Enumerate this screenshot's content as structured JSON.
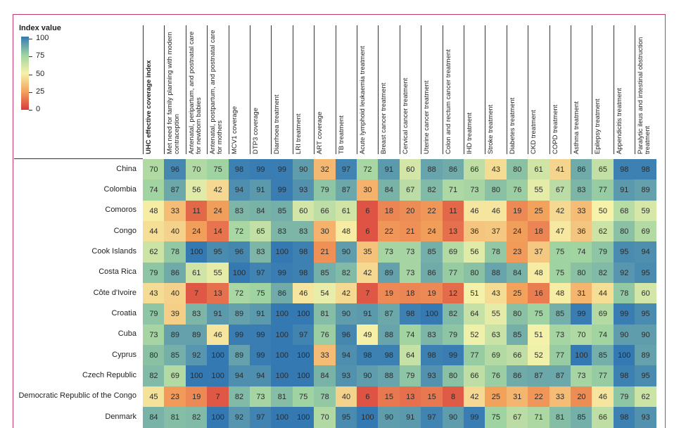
{
  "chart_data": {
    "type": "heatmap",
    "legend_title": "Index value",
    "zlim": [
      0,
      100
    ],
    "zticks": [
      0,
      25,
      50,
      75,
      100
    ],
    "colors": [
      "#d73a3c",
      "#f3a25c",
      "#f6f2aa",
      "#9fd3a2",
      "#3579b3"
    ],
    "categories": [
      "UHC effective coverage index",
      "Met need for family planning with modern contraception",
      "Antenatal, peripartum, and postnatal care for newborn babies",
      "Antenatal, postpartum, and postnatal care for mothers",
      "MCV1 coverage",
      "DTP3 coverage",
      "Diarrhoea treatment",
      "LRI treatment",
      "ART coverage",
      "TB treatment",
      "Acute lymphoid leukaemia treatment",
      "Breast cancer treatment",
      "Cervical cancer treatment",
      "Uterine cancer treatment",
      "Colon and rectum cancer treatment",
      "IHD treatment",
      "Stroke treatment",
      "Diabetes treatment",
      "CKD treatment",
      "COPD treatment",
      "Asthma treatment",
      "Epilepsy treatment",
      "Appendicitis treatment",
      "Paralytic ileus and intestinal obstruction treatment"
    ],
    "rows": [
      "China",
      "Colombia",
      "Comoros",
      "Congo",
      "Cook Islands",
      "Costa Rica",
      "Côte d'Ivoire",
      "Croatia",
      "Cuba",
      "Cyprus",
      "Czech Republic",
      "Democratic Republic of the Congo",
      "Denmark"
    ],
    "values": [
      [
        70,
        96,
        70,
        75,
        98,
        99,
        99,
        90,
        32,
        97,
        72,
        91,
        60,
        88,
        86,
        66,
        43,
        80,
        61,
        41,
        86,
        65,
        98,
        98
      ],
      [
        74,
        87,
        56,
        42,
        94,
        91,
        99,
        93,
        79,
        87,
        30,
        84,
        67,
        82,
        71,
        73,
        80,
        76,
        55,
        67,
        83,
        77,
        91,
        89
      ],
      [
        48,
        33,
        11,
        24,
        83,
        84,
        85,
        60,
        66,
        61,
        6,
        18,
        20,
        22,
        11,
        46,
        46,
        19,
        25,
        42,
        33,
        50,
        68,
        59
      ],
      [
        44,
        40,
        24,
        14,
        72,
        65,
        83,
        83,
        30,
        48,
        6,
        22,
        21,
        24,
        13,
        36,
        37,
        24,
        18,
        47,
        36,
        62,
        80,
        69
      ],
      [
        62,
        78,
        100,
        95,
        96,
        83,
        100,
        98,
        21,
        90,
        35,
        73,
        73,
        85,
        69,
        56,
        78,
        23,
        37,
        75,
        74,
        79,
        95,
        94
      ],
      [
        79,
        86,
        61,
        55,
        100,
        97,
        99,
        98,
        85,
        82,
        42,
        89,
        73,
        86,
        77,
        80,
        88,
        84,
        48,
        75,
        80,
        82,
        92,
        95
      ],
      [
        43,
        40,
        7,
        13,
        72,
        75,
        86,
        46,
        54,
        42,
        7,
        19,
        18,
        19,
        12,
        51,
        43,
        25,
        16,
        48,
        31,
        44,
        78,
        60
      ],
      [
        79,
        39,
        83,
        91,
        89,
        91,
        100,
        100,
        81,
        90,
        91,
        87,
        98,
        100,
        82,
        64,
        55,
        80,
        75,
        85,
        99,
        69,
        99,
        95
      ],
      [
        73,
        89,
        89,
        46,
        99,
        99,
        100,
        97,
        76,
        96,
        49,
        88,
        74,
        83,
        79,
        52,
        63,
        85,
        51,
        73,
        70,
        74,
        90,
        90
      ],
      [
        80,
        85,
        92,
        100,
        89,
        99,
        100,
        100,
        33,
        94,
        98,
        98,
        64,
        98,
        99,
        77,
        69,
        66,
        52,
        77,
        100,
        85,
        100,
        89
      ],
      [
        82,
        69,
        100,
        100,
        94,
        94,
        100,
        100,
        84,
        93,
        90,
        88,
        79,
        93,
        80,
        66,
        76,
        86,
        87,
        87,
        73,
        77,
        98,
        95
      ],
      [
        45,
        23,
        19,
        7,
        82,
        73,
        81,
        75,
        78,
        40,
        6,
        15,
        13,
        15,
        8,
        42,
        25,
        31,
        22,
        33,
        20,
        46,
        79,
        62
      ],
      [
        84,
        81,
        82,
        100,
        92,
        97,
        100,
        100,
        70,
        95,
        100,
        90,
        91,
        97,
        90,
        99,
        75,
        67,
        71,
        81,
        85,
        66,
        98,
        93
      ]
    ]
  }
}
